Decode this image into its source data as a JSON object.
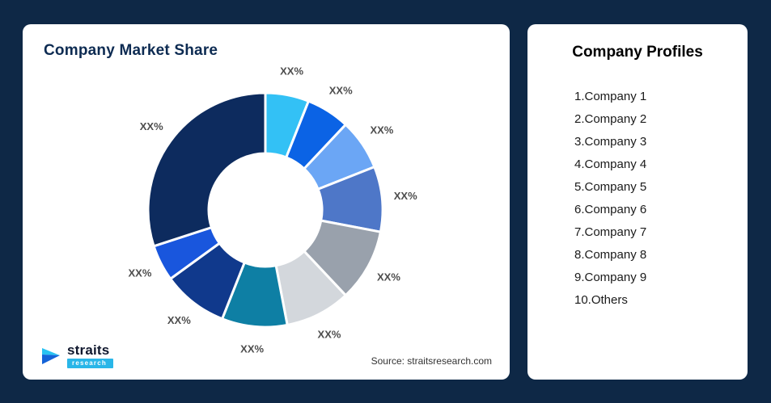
{
  "background": {
    "color": "#0E2846"
  },
  "chart_card": {
    "title": "Company Market Share",
    "source": "Source: straitsresearch.com"
  },
  "logo": {
    "brand": "straits",
    "sub_brand": "research"
  },
  "profiles_card": {
    "title": "Company Profiles",
    "items": [
      "1.Company 1",
      "2.Company 2",
      "3.Company 3",
      "4.Company 4",
      "5.Company 5",
      "6.Company 6",
      "7.Company 7",
      "8.Company 8",
      "9.Company 9",
      "10.Others"
    ]
  },
  "chart_data": {
    "type": "pie",
    "subtype": "donut",
    "title": "Company Market Share",
    "legend_position": "none",
    "value_labels_placeholder": "XX%",
    "start_angle_deg": 0,
    "direction": "clockwise",
    "series": [
      {
        "name": "Company 1",
        "label": "XX%",
        "value": 6,
        "color": "#33C1F5"
      },
      {
        "name": "Company 2",
        "label": "XX%",
        "value": 6,
        "color": "#0B63E5"
      },
      {
        "name": "Company 3",
        "label": "XX%",
        "value": 7,
        "color": "#6BA6F5"
      },
      {
        "name": "Company 4",
        "label": "XX%",
        "value": 9,
        "color": "#4E77C8"
      },
      {
        "name": "Company 5",
        "label": "XX%",
        "value": 10,
        "color": "#99A1AC"
      },
      {
        "name": "Company 6",
        "label": "XX%",
        "value": 9,
        "color": "#D3D7DC"
      },
      {
        "name": "Company 7",
        "label": "XX%",
        "value": 9,
        "color": "#0E7FA4"
      },
      {
        "name": "Company 8",
        "label": "XX%",
        "value": 9,
        "color": "#10398C"
      },
      {
        "name": "Company 9",
        "label": "XX%",
        "value": 5,
        "color": "#1956DD"
      },
      {
        "name": "Others",
        "label": "XX%",
        "value": 30,
        "color": "#0D2B5E"
      }
    ]
  }
}
